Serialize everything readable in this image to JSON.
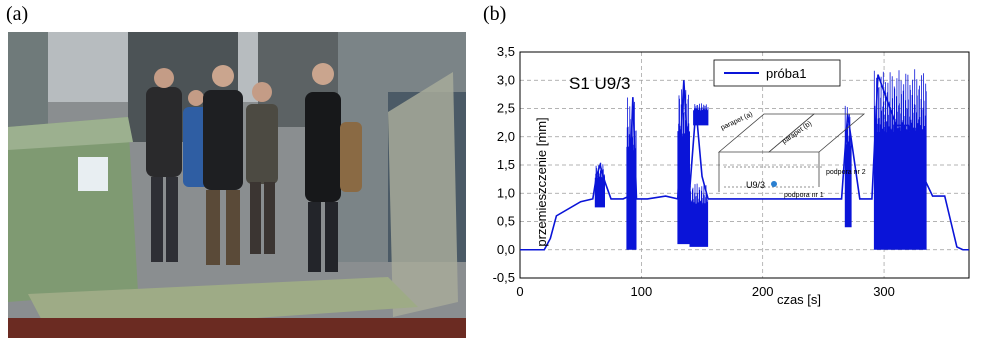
{
  "panels": {
    "a_label": "(a)",
    "b_label": "(b)"
  },
  "photo": {
    "description_icon": "lab-photo-people-on-test-stand"
  },
  "chart_data": {
    "type": "line",
    "title": "S1 U9/3",
    "xlabel": "czas [s]",
    "ylabel": "przemieszczenie [mm]",
    "xlim": [
      0,
      370
    ],
    "ylim": [
      -0.5,
      3.5
    ],
    "xticks": [
      0,
      100,
      200,
      300
    ],
    "yticks": [
      "-0,5",
      "0,0",
      "0,5",
      "1,0",
      "1,5",
      "2,0",
      "2,5",
      "3,0",
      "3,5"
    ],
    "grid": true,
    "legend": "top-center",
    "series": [
      {
        "name": "próba1",
        "color": "#0a14d8",
        "x": [
          0,
          20,
          25,
          30,
          50,
          60,
          63,
          66,
          70,
          75,
          80,
          85,
          90,
          93,
          96,
          100,
          105,
          120,
          130,
          135,
          140,
          145,
          150,
          155,
          160,
          170,
          200,
          250,
          265,
          270,
          280,
          290,
          295,
          300,
          310,
          320,
          330,
          340,
          350,
          355,
          360,
          365,
          370
        ],
        "y": [
          0.0,
          0.0,
          0.2,
          0.6,
          0.85,
          0.9,
          1.3,
          1.5,
          1.2,
          0.9,
          0.9,
          0.9,
          0.95,
          2.7,
          0.9,
          0.9,
          0.9,
          0.95,
          0.9,
          3.0,
          1.1,
          2.5,
          1.3,
          0.9,
          0.9,
          0.9,
          0.9,
          0.9,
          0.9,
          2.4,
          0.9,
          0.9,
          3.1,
          2.8,
          2.2,
          2.2,
          1.4,
          0.95,
          0.95,
          0.5,
          0.05,
          0.0,
          0.0
        ]
      }
    ],
    "inset_labels": {
      "parapet_a": "parapet (a)",
      "parapet_b": "parapet (b)",
      "support_2": "podpora nr 2",
      "support_1": "podpora nr 1",
      "point": "U9/3"
    }
  }
}
